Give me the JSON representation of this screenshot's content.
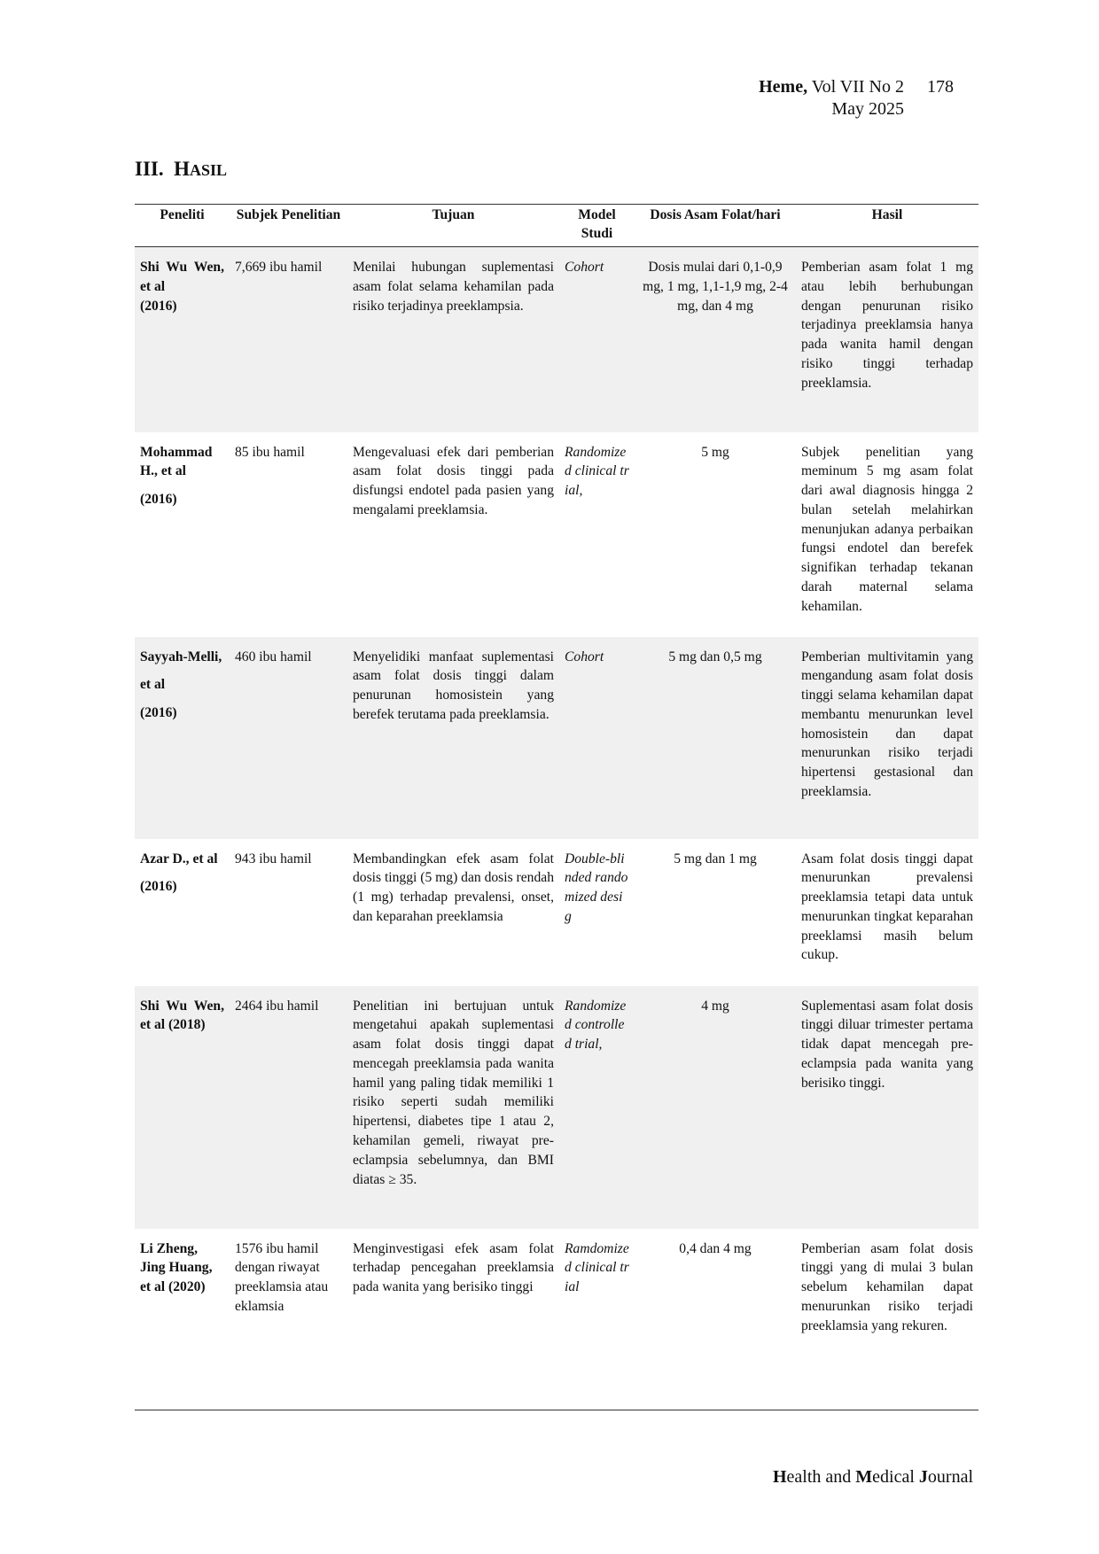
{
  "header": {
    "journal": "Heme,",
    "volume": "Vol VII No 2",
    "page": "178",
    "date": "May 2025"
  },
  "section": {
    "number": "III.",
    "title_first": "H",
    "title_rest": "ASIL"
  },
  "table": {
    "columns": [
      "Peneliti",
      "Subjek Penelitian",
      "Tujuan",
      "Model Studi",
      "Dosis Asam Folat/hari",
      "Hasil"
    ],
    "rows": [
      {
        "author": "Shi Wu Wen, et al",
        "year": "(2016)",
        "subject": "7,669 ibu hamil",
        "aim": "Menilai hubungan suplementasi asam folat selama kehamilan pada risiko terjadinya preeklampsia.",
        "model": "Cohort",
        "dose": "Dosis mulai dari 0,1-0,9 mg, 1 mg, 1,1-1,9 mg, 2-4 mg, dan 4 mg",
        "result": "Pemberian asam folat 1 mg atau lebih berhubungan dengan penurunan risiko terjadinya preeklamsia hanya pada wanita hamil dengan risiko tinggi terhadap preeklamsia."
      },
      {
        "author": "Mohammad H., et al",
        "year": "(2016)",
        "subject": "85 ibu hamil",
        "aim": "Mengevaluasi efek dari pemberian asam folat dosis tinggi pada disfungsi endotel pada pasien yang mengalami preeklamsia.",
        "model": "Randomized clinical trial,",
        "dose": "5 mg",
        "result": "Subjek penelitian yang meminum 5 mg asam folat dari awal diagnosis hingga 2 bulan setelah melahirkan menunjukan adanya perbaikan fungsi endotel dan berefek signifikan terhadap tekanan darah maternal selama kehamilan."
      },
      {
        "author": "Sayyah-Melli,",
        "author2": "et al",
        "year": "(2016)",
        "subject": "460 ibu hamil",
        "aim": "Menyelidiki manfaat suplementasi asam folat dosis tinggi dalam penurunan homosistein yang berefek terutama pada preeklamsia.",
        "model": "Cohort",
        "dose": "5 mg dan 0,5 mg",
        "result": "Pemberian multivitamin yang mengandung asam folat dosis tinggi selama kehamilan dapat membantu menurunkan level homosistein dan dapat menurunkan risiko terjadi hipertensi gestasional dan preeklamsia."
      },
      {
        "author": "Azar D., et al",
        "year": "(2016)",
        "subject": "943 ibu hamil",
        "aim": "Membandingkan efek asam folat dosis tinggi (5 mg) dan dosis rendah (1 mg) terhadap prevalensi, onset, dan keparahan preeklamsia",
        "model": "Double-blinded randomized desig",
        "dose": "5 mg dan 1 mg",
        "result": "Asam folat dosis tinggi dapat menurunkan prevalensi preeklamsia tetapi data untuk menurunkan tingkat keparahan preeklamsi masih belum cukup."
      },
      {
        "author": "Shi Wu Wen, et al (2018)",
        "subject": "2464 ibu hamil",
        "aim": "Penelitian ini bertujuan untuk mengetahui apakah suplementasi asam folat dosis tinggi dapat mencegah preeklamsia pada wanita hamil yang paling tidak memiliki 1 risiko seperti sudah memiliki hipertensi, diabetes tipe 1 atau 2, kehamilan gemeli, riwayat pre-eclampsia sebelumnya, dan BMI diatas ≥ 35.",
        "model": "Randomized controlled trial,",
        "dose": "4 mg",
        "result": "Suplementasi asam folat dosis tinggi diluar trimester pertama tidak dapat mencegah pre-eclampsia pada wanita yang berisiko tinggi."
      },
      {
        "author": "Li Zheng, Jing Huang, et al (2020)",
        "subject": "1576 ibu hamil dengan riwayat preeklamsia atau eklamsia",
        "aim": "Menginvestigasi efek asam folat terhadap pencegahan preeklamsia pada wanita yang berisiko tinggi",
        "model": "Ramdomized clinical trial",
        "dose": "0,4 dan 4 mg",
        "result": "Pemberian asam folat dosis tinggi yang di mulai 3 bulan sebelum kehamilan dapat menurunkan risiko terjadi preeklamsia yang rekuren."
      }
    ]
  },
  "footer": {
    "h": "H",
    "ealth": "ealth and ",
    "m": "M",
    "edical": "edical ",
    "j": "J",
    "ournal": "ournal"
  }
}
